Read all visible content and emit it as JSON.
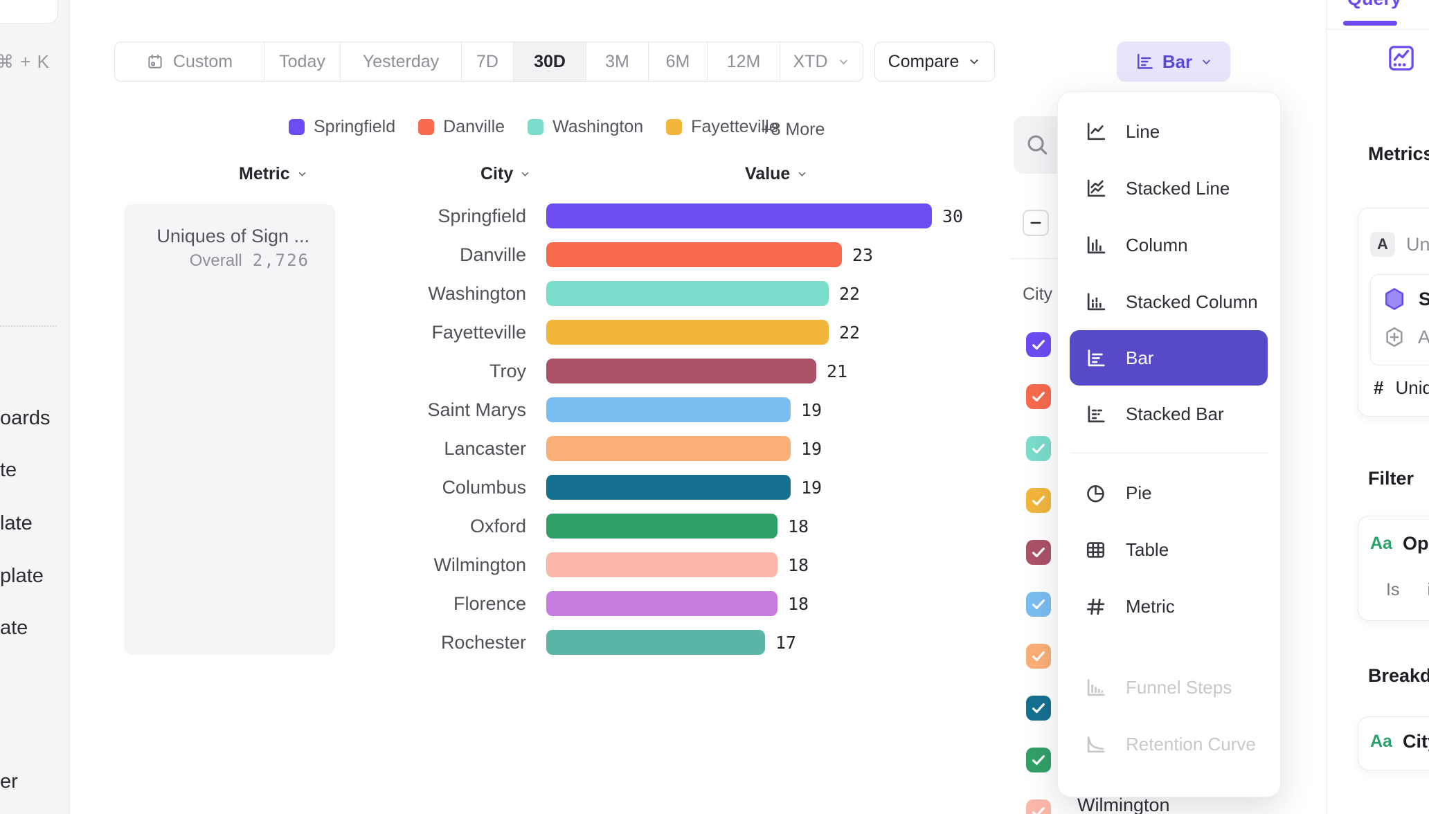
{
  "colors": {
    "accent_purple": "#6C4AEF",
    "selected_menu_item": "#574AC8",
    "bar_button_bg": "#E7E4FB",
    "bar_button_fg": "#5B49D6",
    "aa_badge_green": "#2BA06A"
  },
  "left_sidebar": {
    "shortcut": "⌘ + K",
    "items": [
      "oards",
      "te",
      "late",
      "plate",
      "ate",
      "er"
    ]
  },
  "toolbar": {
    "date_ranges": [
      {
        "label": "Custom",
        "icon": "calendar-icon"
      },
      {
        "label": "Today"
      },
      {
        "label": "Yesterday"
      },
      {
        "label": "7D"
      },
      {
        "label": "30D"
      },
      {
        "label": "3M"
      },
      {
        "label": "6M"
      },
      {
        "label": "12M"
      },
      {
        "label": "XTD",
        "chevron": true
      }
    ],
    "active_range": "30D",
    "compare_label": "Compare",
    "chart_type_button": "Bar"
  },
  "legend": {
    "items": [
      {
        "label": "Springfield",
        "color": "#6C4CF1"
      },
      {
        "label": "Danville",
        "color": "#F76A4E"
      },
      {
        "label": "Washington",
        "color": "#7ADCCB"
      },
      {
        "label": "Fayetteville",
        "color": "#F2B63D"
      }
    ],
    "more_label": "+8 More"
  },
  "table_headers": {
    "metric": "Metric",
    "city": "City",
    "value": "Value"
  },
  "metric_panel": {
    "title": "Uniques of Sign ...",
    "overall_label": "Overall",
    "overall_value": "2,726"
  },
  "chart_data": {
    "type": "bar",
    "orientation": "horizontal",
    "categories": [
      "Springfield",
      "Danville",
      "Washington",
      "Fayetteville",
      "Troy",
      "Saint Marys",
      "Lancaster",
      "Columbus",
      "Oxford",
      "Wilmington",
      "Florence",
      "Rochester"
    ],
    "values": [
      30,
      23,
      22,
      22,
      21,
      19,
      19,
      19,
      18,
      18,
      18,
      17
    ],
    "colors": [
      "#6C4CF1",
      "#F76A4E",
      "#7ADCCB",
      "#F2B63D",
      "#AB5267",
      "#7ABDF1",
      "#FAAF76",
      "#15708F",
      "#31A066",
      "#FCB7AA",
      "#C77CDF",
      "#5AB5A7"
    ],
    "xlim": [
      0,
      30
    ],
    "value_labels": true,
    "legend_position": "top"
  },
  "series_panel": {
    "column_header": "City",
    "checkbox_colors": [
      "#6C4CF1",
      "#F76A4E",
      "#7ADCCB",
      "#F2B63D",
      "#AB5267",
      "#7ABDF1",
      "#FAAF76",
      "#15708F",
      "#31A066",
      "#FCB7AA"
    ],
    "partial_row_label": "Wilmington"
  },
  "chart_menu": {
    "items": [
      {
        "label": "Line",
        "icon": "line-chart-icon",
        "state": "normal"
      },
      {
        "label": "Stacked Line",
        "icon": "stacked-line-icon",
        "state": "normal"
      },
      {
        "label": "Column",
        "icon": "column-chart-icon",
        "state": "normal"
      },
      {
        "label": "Stacked Column",
        "icon": "stacked-column-icon",
        "state": "normal"
      },
      {
        "label": "Bar",
        "icon": "bar-chart-icon",
        "state": "selected"
      },
      {
        "label": "Stacked Bar",
        "icon": "stacked-bar-icon",
        "state": "normal"
      },
      {
        "label": "Pie",
        "icon": "pie-chart-icon",
        "state": "normal"
      },
      {
        "label": "Table",
        "icon": "table-icon",
        "state": "normal"
      },
      {
        "label": "Metric",
        "icon": "hash-icon",
        "state": "normal"
      },
      {
        "label": "Funnel Steps",
        "icon": "funnel-steps-icon",
        "state": "disabled"
      },
      {
        "label": "Retention Curve",
        "icon": "retention-curve-icon",
        "state": "disabled"
      }
    ]
  },
  "query_panel": {
    "tab_label": "Query",
    "metrics_heading": "Metrics",
    "event_badge": "A",
    "event_name": "Uniq",
    "signal_label": "Sig",
    "add_label": "Ad",
    "measure_prefix": "#",
    "measure_label": "Uniqu",
    "filter_heading": "Filter",
    "filter_type_badge": "Aa",
    "filter_field": "Ope",
    "filter_operator": "Is",
    "filter_value": "i",
    "breakdown_heading": "Breakdo",
    "breakdown_type_badge": "Aa",
    "breakdown_field": "City"
  }
}
